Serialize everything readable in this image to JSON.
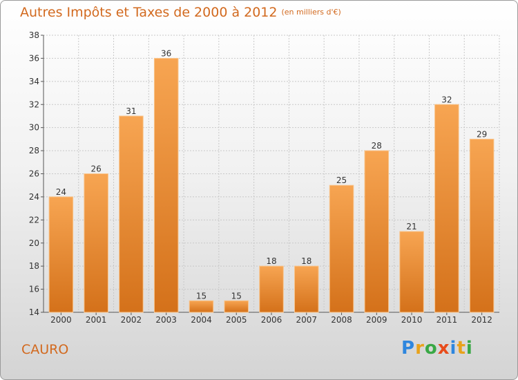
{
  "header": {
    "title": "Autres Impôts et Taxes de 2000 à 2012",
    "unit": "(en milliers d'€)"
  },
  "footer": {
    "city": "CAURO",
    "logo": [
      "P",
      "r",
      "o",
      "x",
      "i",
      "t",
      "i"
    ],
    "logo_colors": [
      "#2e86de",
      "#e8a21b",
      "#39a845",
      "#e84c1b",
      "#2e86de",
      "#e8a21b",
      "#39a845"
    ]
  },
  "colors": {
    "bar_top": "#f7a552",
    "bar_bottom": "#d4711a",
    "title": "#d2691e",
    "grid": "#c8c8c8"
  },
  "chart_data": {
    "type": "bar",
    "categories": [
      "2000",
      "2001",
      "2002",
      "2003",
      "2004",
      "2005",
      "2006",
      "2007",
      "2008",
      "2009",
      "2010",
      "2011",
      "2012"
    ],
    "values": [
      24,
      26,
      31,
      36,
      15,
      15,
      18,
      18,
      25,
      28,
      21,
      32,
      29
    ],
    "title": "Autres Impôts et Taxes de 2000 à 2012",
    "xlabel": "",
    "ylabel": "",
    "ylim": [
      14,
      38
    ],
    "yticks": [
      14,
      16,
      18,
      20,
      22,
      24,
      26,
      28,
      30,
      32,
      34,
      36,
      38
    ],
    "grid": true
  }
}
